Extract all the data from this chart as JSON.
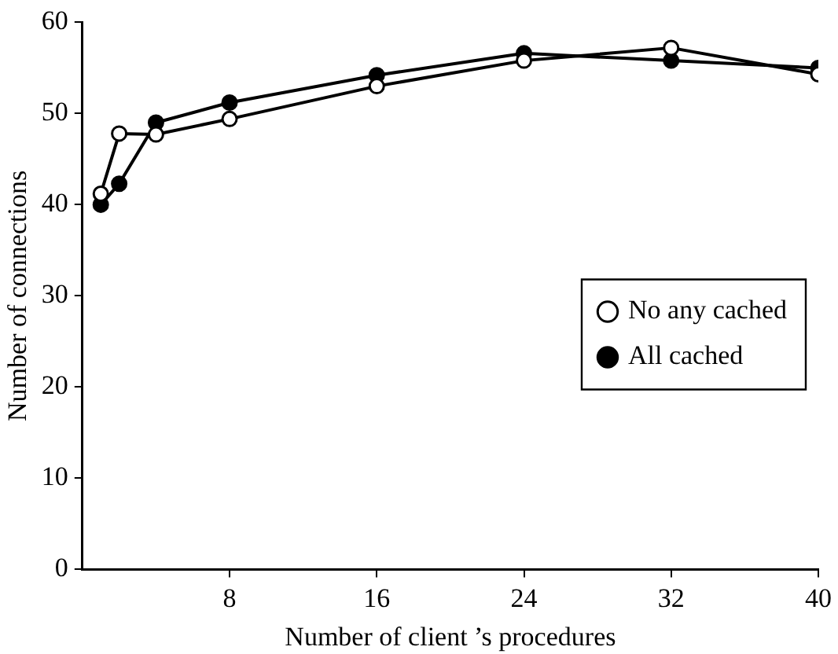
{
  "chart_data": {
    "type": "line",
    "xlabel": "Number of client ’s procedures",
    "ylabel": "Number of connections",
    "x": [
      1,
      2,
      4,
      8,
      16,
      24,
      32,
      40
    ],
    "series": [
      {
        "name": "No any cached",
        "color": "#000000",
        "values": [
          41.2,
          47.8,
          47.7,
          49.4,
          53,
          55.8,
          57.2,
          54.3
        ]
      },
      {
        "name": "All cached",
        "color": "#000000",
        "values": [
          40,
          42.3,
          49,
          51.2,
          54.2,
          56.6,
          55.8,
          55
        ]
      }
    ],
    "xlim": [
      0,
      40
    ],
    "xticks": [
      8,
      16,
      24,
      32,
      40
    ],
    "ylim": [
      0,
      60
    ],
    "yticks": [
      0,
      10,
      20,
      30,
      40,
      50,
      60
    ],
    "grid": false,
    "legend": "right",
    "marker": "circle",
    "line_style": "solid"
  }
}
